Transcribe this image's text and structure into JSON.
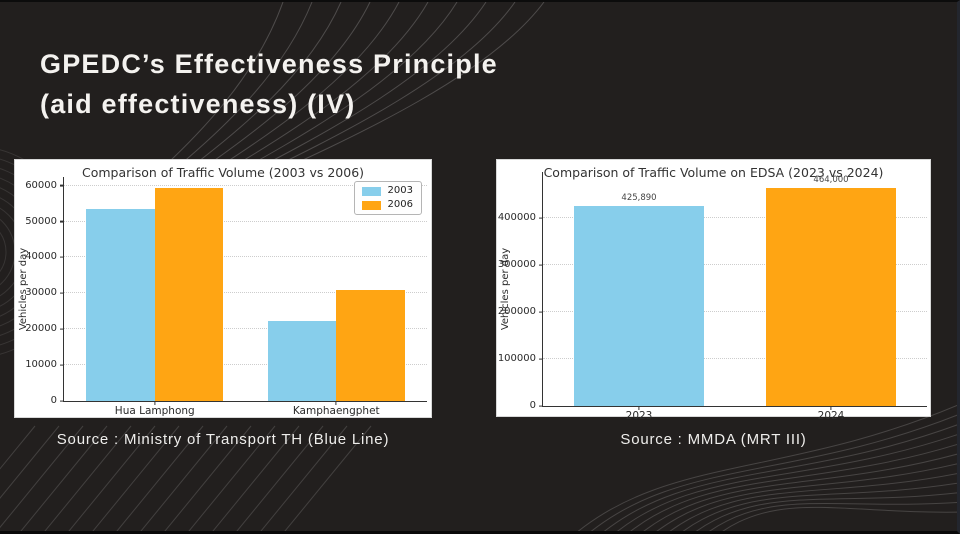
{
  "slide": {
    "title_line1": "GPEDC’s Effectiveness Principle",
    "title_line2": "(aid effectiveness) (IV)",
    "background_color": "#221f1e",
    "title_color": "#f4f2ef"
  },
  "chart_data": [
    {
      "type": "bar",
      "title": "Comparison of Traffic Volume (2003 vs 2006)",
      "categories": [
        "Hua Lamphong",
        "Kamphaengphet"
      ],
      "series": [
        {
          "name": "2003",
          "color": "#87CEEB",
          "values": [
            53500,
            22200
          ]
        },
        {
          "name": "2006",
          "color": "#FFA513",
          "values": [
            59400,
            31000
          ]
        }
      ],
      "xlabel": "",
      "ylabel": "Vehicles per day",
      "ylim": [
        0,
        62400
      ],
      "yticks": [
        0,
        10000,
        20000,
        30000,
        40000,
        50000,
        60000
      ],
      "ytick_labels": [
        "0",
        "10000",
        "20000",
        "30000",
        "40000",
        "50000",
        "60000"
      ],
      "grid": true,
      "legend": true,
      "legend_position": "upper right",
      "group_width_frac": 0.755,
      "source": "Source : Ministry of Transport TH (Blue Line)"
    },
    {
      "type": "bar",
      "title": "Comparison of Traffic Volume on EDSA (2023 vs 2024)",
      "categories": [
        "2023",
        "2024"
      ],
      "series": [
        {
          "name": "Vehicles per day",
          "colors": [
            "#87CEEB",
            "#FFA513"
          ],
          "values": [
            425890,
            464000
          ]
        }
      ],
      "bar_labels": [
        "425,890",
        "464,000"
      ],
      "xlabel": "",
      "ylabel": "Vehicles per day",
      "ylim": [
        0,
        498000
      ],
      "yticks": [
        0,
        100000,
        200000,
        300000,
        400000
      ],
      "ytick_labels": [
        "0",
        "100000",
        "200000",
        "300000",
        "400000"
      ],
      "grid": true,
      "legend": false,
      "group_width_frac": 0.68,
      "source": "Source : MMDA (MRT III)"
    }
  ]
}
